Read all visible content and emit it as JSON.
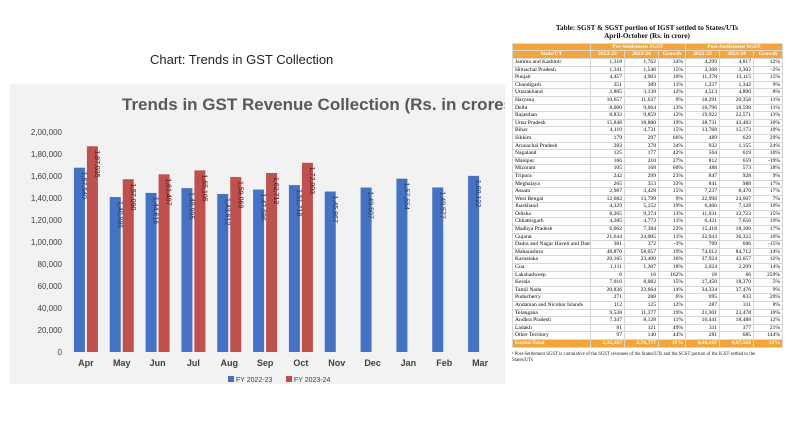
{
  "page_title": "Chart: Trends in GST Collection",
  "chart_data": {
    "type": "bar",
    "title": "Trends in GST Revenue Collection (Rs. in crores)",
    "categories": [
      "Apr",
      "May",
      "Jun",
      "Jul",
      "Aug",
      "Sep",
      "Oct",
      "Nov",
      "Dec",
      "Jan",
      "Feb",
      "Mar"
    ],
    "series": [
      {
        "name": "FY 2022-23",
        "color": "#4472c4",
        "values": [
          167540,
          140885,
          144616,
          148995,
          143612,
          147686,
          151718,
          145867,
          149507,
          157554,
          149577,
          160122
        ],
        "labels": [
          "1,67,540",
          "1,40,885",
          "1,44,616",
          "1,48,995",
          "1,43,612",
          "1,47,686",
          "1,51,718",
          "1,45,867",
          "1,49,507",
          "1,57,554",
          "1,49,577",
          "1,60,122"
        ]
      },
      {
        "name": "FY 2023-24",
        "color": "#c0504d",
        "values": [
          187035,
          157090,
          161497,
          165105,
          159069,
          162712,
          172003,
          null,
          null,
          null,
          null,
          null
        ],
        "labels": [
          "1,87,035",
          "1,57,090",
          "1,61,497",
          "1,65,105",
          "1,59,069",
          "1,62,712",
          "1,72,003",
          "",
          "",
          "",
          "",
          ""
        ]
      }
    ],
    "ylim": [
      0,
      200000
    ],
    "yticks": [
      "0",
      "20,000",
      "40,000",
      "60,000",
      "80,000",
      "1,00,000",
      "1,20,000",
      "1,40,000",
      "1,60,000",
      "1,80,000",
      "2,00,000"
    ],
    "legend": "bottom",
    "grid": false
  },
  "table": {
    "title_line1": "Table: SGST & SGST portion of IGST settled to States/UTs",
    "title_line2": "April-October (Rs. in crore)",
    "group_headers": [
      "Pre-Settlement SGST",
      "Post-Settlement SGST"
    ],
    "col_headers": [
      "State/UT",
      "2022-23",
      "2023-24",
      "Growth",
      "2022-23",
      "2023-24",
      "Growth"
    ],
    "rows": [
      [
        "Jammu and Kashmir",
        "1,318",
        "1,762",
        "34%",
        "4,299",
        "4,817",
        "12%"
      ],
      [
        "Himachal Pradesh",
        "1,341",
        "1,546",
        "15%",
        "3,368",
        "3,302",
        "-2%"
      ],
      [
        "Punjab",
        "4,457",
        "4,903",
        "10%",
        "11,378",
        "13,115",
        "15%"
      ],
      [
        "Chandigarh",
        "351",
        "389",
        "11%",
        "1,227",
        "1,342",
        "9%"
      ],
      [
        "Uttarakhand",
        "2,805",
        "3,139",
        "12%",
        "4,513",
        "4,890",
        "8%"
      ],
      [
        "Haryana",
        "10,657",
        "11,637",
        "9%",
        "18,291",
        "20,358",
        "11%"
      ],
      [
        "Delhi",
        "8,000",
        "9,064",
        "13%",
        "16,796",
        "18,598",
        "11%"
      ],
      [
        "Rajasthan",
        "8,832",
        "9,859",
        "12%",
        "19,922",
        "22,571",
        "13%"
      ],
      [
        "Uttar Pradesh",
        "15,848",
        "18,880",
        "19%",
        "38,731",
        "42,482",
        "10%"
      ],
      [
        "Bihar",
        "4,110",
        "4,731",
        "15%",
        "13,768",
        "15,173",
        "10%"
      ],
      [
        "Sikkim",
        "179",
        "297",
        "66%",
        "489",
        "629",
        "29%"
      ],
      [
        "Arunachal Pradesh",
        "282",
        "378",
        "34%",
        "932",
        "1,155",
        "24%"
      ],
      [
        "Nagaland",
        "125",
        "177",
        "42%",
        "564",
        "619",
        "10%"
      ],
      [
        "Manipur",
        "166",
        "210",
        "27%",
        "812",
        "659",
        "-19%"
      ],
      [
        "Mizoram",
        "105",
        "168",
        "60%",
        "488",
        "573",
        "18%"
      ],
      [
        "Tripura",
        "242",
        "299",
        "23%",
        "847",
        "928",
        "9%"
      ],
      [
        "Meghalaya",
        "265",
        "353",
        "33%",
        "841",
        "988",
        "17%"
      ],
      [
        "Assam",
        "2,987",
        "3,428",
        "15%",
        "7,237",
        "8,470",
        "17%"
      ],
      [
        "West Bengal",
        "12,682",
        "13,799",
        "9%",
        "22,998",
        "24,607",
        "7%"
      ],
      [
        "Jharkhand",
        "4,329",
        "5,152",
        "19%",
        "6,466",
        "7,128",
        "10%"
      ],
      [
        "Odisha",
        "8,265",
        "9,374",
        "13%",
        "11,031",
        "12,723",
        "15%"
      ],
      [
        "Chhattisgarh",
        "4,285",
        "4,773",
        "11%",
        "6,421",
        "7,656",
        "19%"
      ],
      [
        "Madhya Pradesh",
        "6,062",
        "7,384",
        "22%",
        "15,418",
        "18,100",
        "17%"
      ],
      [
        "Gujarat",
        "21,644",
        "24,005",
        "11%",
        "32,943",
        "36,322",
        "10%"
      ],
      [
        "Dadra and Nagar Haveli and Daman and Diu",
        "381",
        "372",
        "-3%",
        "709",
        "606",
        "-15%"
      ],
      [
        "Maharashtra",
        "48,870",
        "58,057",
        "19%",
        "74,612",
        "84,712",
        "14%"
      ],
      [
        "Karnataka",
        "20,165",
        "23,400",
        "16%",
        "37,924",
        "42,657",
        "12%"
      ],
      [
        "Goa",
        "1,111",
        "1,307",
        "18%",
        "2,024",
        "2,299",
        "14%"
      ],
      [
        "Lakshadweep",
        "6",
        "16",
        "162%",
        "18",
        "66",
        "259%"
      ],
      [
        "Kerala",
        "7,016",
        "8,082",
        "15%",
        "17,450",
        "18,370",
        "5%"
      ],
      [
        "Tamil Nadu",
        "20,836",
        "23,664",
        "14%",
        "34,334",
        "37,476",
        "9%"
      ],
      [
        "Puducherry",
        "271",
        "288",
        "6%",
        "695",
        "833",
        "20%"
      ],
      [
        "Andaman and Nicobar Islands",
        "112",
        "125",
        "12%",
        "287",
        "311",
        "8%"
      ],
      [
        "Telangana",
        "9,538",
        "11,377",
        "19%",
        "21,301",
        "23,478",
        "10%"
      ],
      [
        "Andhra Pradesh",
        "7,347",
        "8,128",
        "11%",
        "16,441",
        "18,488",
        "12%"
      ],
      [
        "Ladakh",
        "81",
        "121",
        "49%",
        "311",
        "377",
        "21%"
      ],
      [
        "Other Territory",
        "97",
        "140",
        "44%",
        "281",
        "685",
        "144%"
      ]
    ],
    "total": [
      "Grand Total",
      "2,35,167",
      "2,76,777",
      "18%",
      "4,46,167",
      "4,97,562",
      "12%"
    ],
    "footnote": "¹ Post-Settlement SGST is cumulative of the SGST revenues of the States/UTs and the SGST portion of the IGST settled to the States/UTs"
  }
}
